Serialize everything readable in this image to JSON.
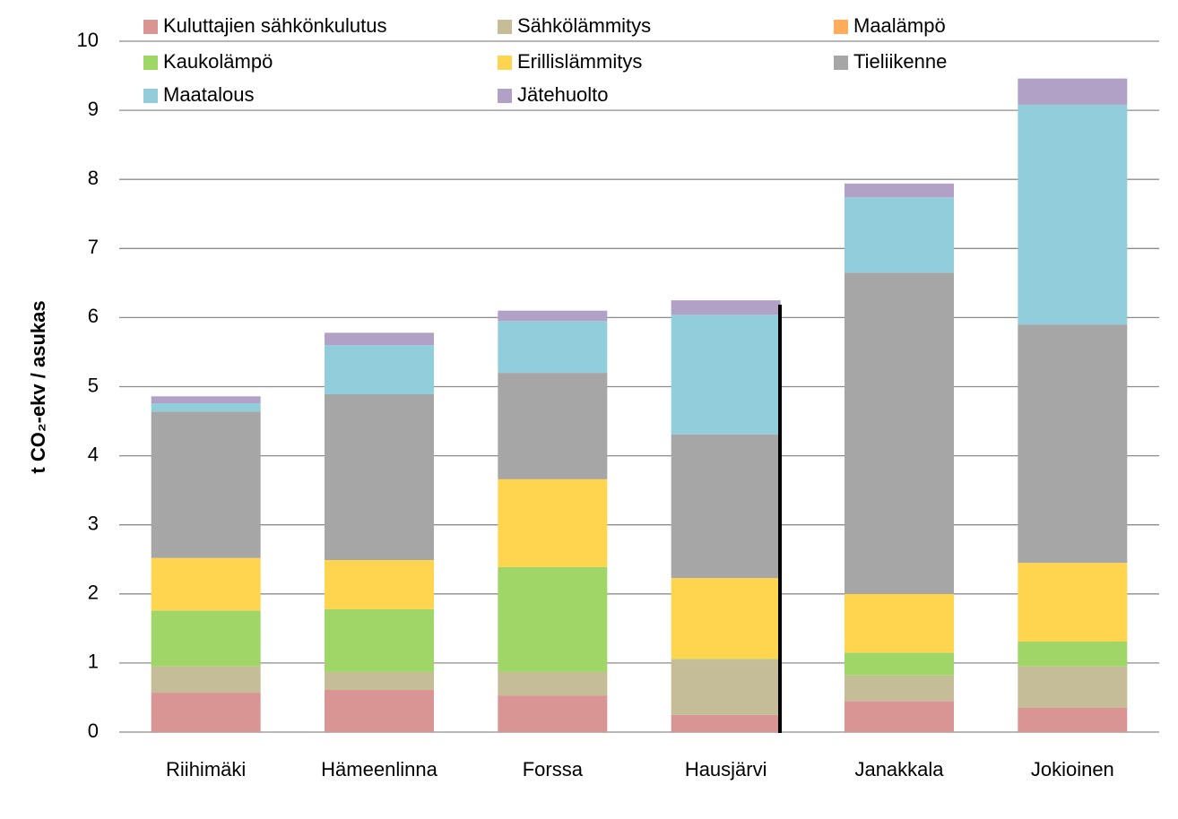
{
  "chart_data": {
    "type": "stacked_bar",
    "y_label": "t CO₂-ekv / asukas",
    "categories": [
      "Riihimäki",
      "Hämeenlinna",
      "Forssa",
      "Hausjärvi",
      "Janakkala",
      "Jokioinen"
    ],
    "series": [
      {
        "name": "Kuluttajien sähkönkulutus",
        "color": "#d99594",
        "values": [
          0.57,
          0.61,
          0.53,
          0.25,
          0.45,
          0.35
        ]
      },
      {
        "name": "Sähkölämmitys",
        "color": "#c4bd97",
        "values": [
          0.38,
          0.26,
          0.34,
          0.8,
          0.37,
          0.6
        ]
      },
      {
        "name": "Maalämpö",
        "color": "#ffad5b",
        "values": [
          0,
          0,
          0,
          0,
          0,
          0
        ]
      },
      {
        "name": "Kaukolämpö",
        "color": "#a0d568",
        "values": [
          0.81,
          0.91,
          1.52,
          0.01,
          0.33,
          0.36
        ]
      },
      {
        "name": "Erillislämmitys",
        "color": "#ffd54f",
        "values": [
          0.76,
          0.71,
          1.27,
          1.17,
          0.85,
          1.14
        ]
      },
      {
        "name": "Tieliikenne",
        "color": "#a6a6a6",
        "values": [
          2.12,
          2.4,
          1.54,
          2.08,
          4.65,
          3.45
        ]
      },
      {
        "name": "Maatalous",
        "color": "#92cddc",
        "values": [
          0.12,
          0.71,
          0.75,
          1.73,
          1.09,
          3.18
        ]
      },
      {
        "name": "Jätehuolto",
        "color": "#b2a1c7",
        "values": [
          0.1,
          0.18,
          0.15,
          0.21,
          0.2,
          0.38
        ]
      }
    ],
    "ylim": [
      0,
      10
    ],
    "yticks": [
      0,
      1,
      2,
      3,
      4,
      5,
      6,
      7,
      8,
      9,
      10
    ],
    "grid": true,
    "legend": "top"
  }
}
